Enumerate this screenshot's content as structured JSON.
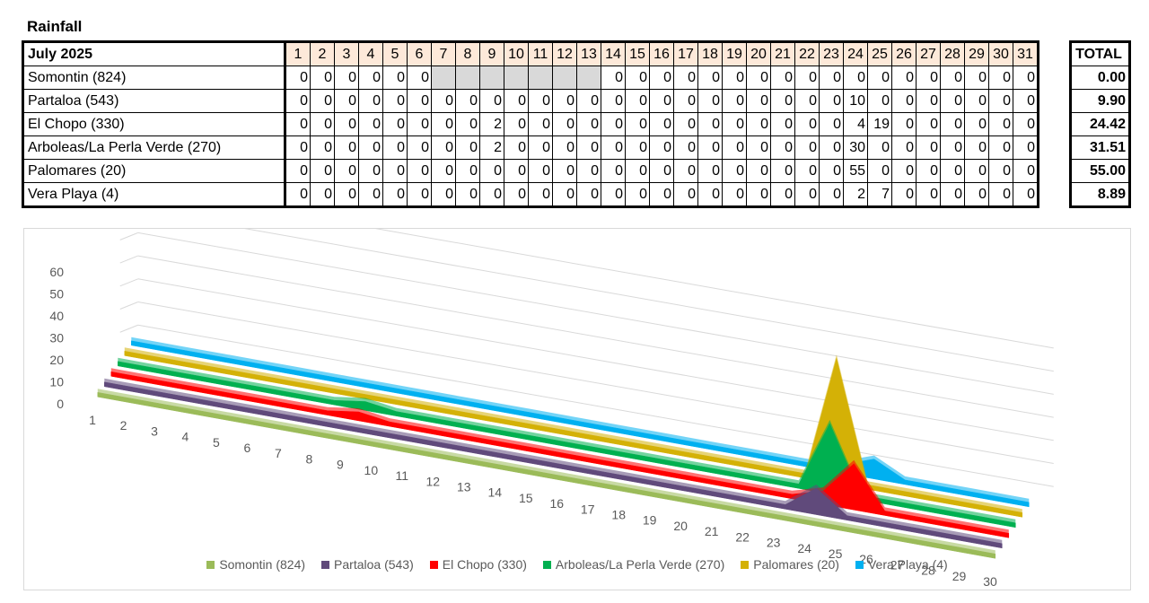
{
  "title": "Rainfall",
  "table": {
    "header_label": "July 2025",
    "days": [
      "1",
      "2",
      "3",
      "4",
      "5",
      "6",
      "7",
      "8",
      "9",
      "10",
      "11",
      "12",
      "13",
      "14",
      "15",
      "16",
      "17",
      "18",
      "19",
      "20",
      "21",
      "22",
      "23",
      "24",
      "25",
      "26",
      "27",
      "28",
      "29",
      "30",
      "31"
    ],
    "total_label": "TOTAL",
    "rows": [
      {
        "name": "Somontin (824)",
        "values": [
          "0",
          "0",
          "0",
          "0",
          "0",
          "0",
          "",
          "",
          "",
          "",
          "",
          "",
          "",
          "0",
          "0",
          "0",
          "0",
          "0",
          "0",
          "0",
          "0",
          "0",
          "0",
          "0",
          "0",
          "0",
          "0",
          "0",
          "0",
          "0",
          "0"
        ],
        "total": "0.00"
      },
      {
        "name": "Partaloa (543)",
        "values": [
          "0",
          "0",
          "0",
          "0",
          "0",
          "0",
          "0",
          "0",
          "0",
          "0",
          "0",
          "0",
          "0",
          "0",
          "0",
          "0",
          "0",
          "0",
          "0",
          "0",
          "0",
          "0",
          "0",
          "10",
          "0",
          "0",
          "0",
          "0",
          "0",
          "0",
          "0"
        ],
        "total": "9.90"
      },
      {
        "name": "El Chopo (330)",
        "values": [
          "0",
          "0",
          "0",
          "0",
          "0",
          "0",
          "0",
          "0",
          "2",
          "0",
          "0",
          "0",
          "0",
          "0",
          "0",
          "0",
          "0",
          "0",
          "0",
          "0",
          "0",
          "0",
          "0",
          "4",
          "19",
          "0",
          "0",
          "0",
          "0",
          "0",
          "0"
        ],
        "total": "24.42"
      },
      {
        "name": "Arboleas/La Perla Verde (270)",
        "values": [
          "0",
          "0",
          "0",
          "0",
          "0",
          "0",
          "0",
          "0",
          "2",
          "0",
          "0",
          "0",
          "0",
          "0",
          "0",
          "0",
          "0",
          "0",
          "0",
          "0",
          "0",
          "0",
          "0",
          "30",
          "0",
          "0",
          "0",
          "0",
          "0",
          "0",
          "0"
        ],
        "total": "31.51"
      },
      {
        "name": "Palomares (20)",
        "values": [
          "0",
          "0",
          "0",
          "0",
          "0",
          "0",
          "0",
          "0",
          "0",
          "0",
          "0",
          "0",
          "0",
          "0",
          "0",
          "0",
          "0",
          "0",
          "0",
          "0",
          "0",
          "0",
          "0",
          "55",
          "0",
          "0",
          "0",
          "0",
          "0",
          "0",
          "0"
        ],
        "total": "55.00"
      },
      {
        "name": "Vera Playa (4)",
        "values": [
          "0",
          "0",
          "0",
          "0",
          "0",
          "0",
          "0",
          "0",
          "0",
          "0",
          "0",
          "0",
          "0",
          "0",
          "0",
          "0",
          "0",
          "0",
          "0",
          "0",
          "0",
          "0",
          "0",
          "2",
          "7",
          "0",
          "0",
          "0",
          "0",
          "0",
          "0"
        ],
        "total": "8.89"
      }
    ]
  },
  "chart_data": {
    "type": "area",
    "subtype": "3d-area",
    "x": [
      "1",
      "2",
      "3",
      "4",
      "5",
      "6",
      "7",
      "8",
      "9",
      "10",
      "11",
      "12",
      "13",
      "14",
      "15",
      "16",
      "17",
      "18",
      "19",
      "20",
      "21",
      "22",
      "23",
      "24",
      "25",
      "26",
      "27",
      "28",
      "29",
      "30"
    ],
    "ylim": [
      0,
      60
    ],
    "yticks": [
      "0",
      "10",
      "20",
      "30",
      "40",
      "50",
      "60"
    ],
    "grid": true,
    "legend": "bottom",
    "series": [
      {
        "name": "Somontin (824)",
        "color": "#9bbb59",
        "values": [
          0,
          0,
          0,
          0,
          0,
          0,
          0,
          0,
          0,
          0,
          0,
          0,
          0,
          0,
          0,
          0,
          0,
          0,
          0,
          0,
          0,
          0,
          0,
          0,
          0,
          0,
          0,
          0,
          0,
          0
        ]
      },
      {
        "name": "Partaloa (543)",
        "color": "#604a7b",
        "values": [
          0,
          0,
          0,
          0,
          0,
          0,
          0,
          0,
          0,
          0,
          0,
          0,
          0,
          0,
          0,
          0,
          0,
          0,
          0,
          0,
          0,
          0,
          0,
          10,
          0,
          0,
          0,
          0,
          0,
          0
        ]
      },
      {
        "name": "El Chopo (330)",
        "color": "#ff0000",
        "values": [
          0,
          0,
          0,
          0,
          0,
          0,
          0,
          0,
          2,
          0,
          0,
          0,
          0,
          0,
          0,
          0,
          0,
          0,
          0,
          0,
          0,
          0,
          0,
          4,
          19,
          0,
          0,
          0,
          0,
          0
        ]
      },
      {
        "name": "Arboleas/La Perla Verde (270)",
        "color": "#00b050",
        "values": [
          0,
          0,
          0,
          0,
          0,
          0,
          0,
          0,
          2,
          0,
          0,
          0,
          0,
          0,
          0,
          0,
          0,
          0,
          0,
          0,
          0,
          0,
          0,
          30,
          0,
          0,
          0,
          0,
          0,
          0
        ]
      },
      {
        "name": "Palomares (20)",
        "color": "#d4b106",
        "values": [
          0,
          0,
          0,
          0,
          0,
          0,
          0,
          0,
          0,
          0,
          0,
          0,
          0,
          0,
          0,
          0,
          0,
          0,
          0,
          0,
          0,
          0,
          0,
          55,
          0,
          0,
          0,
          0,
          0,
          0
        ]
      },
      {
        "name": "Vera Playa (4)",
        "color": "#00b0f0",
        "values": [
          0,
          0,
          0,
          0,
          0,
          0,
          0,
          0,
          0,
          0,
          0,
          0,
          0,
          0,
          0,
          0,
          0,
          0,
          0,
          0,
          0,
          0,
          0,
          2,
          7,
          0,
          0,
          0,
          0,
          0
        ]
      }
    ]
  }
}
